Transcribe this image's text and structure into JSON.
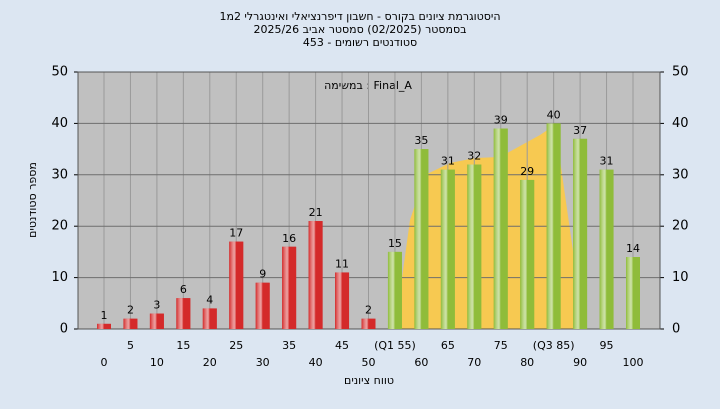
{
  "chart_data": {
    "type": "bar",
    "title": [
      "היסטוגרמת ציונים בקורס - חשבון דיפרנציאלי ואינטגרלי 2מ1",
      "בסמסטר (02/2025) סמסטר אביב 2025/26",
      "סטודנטים רשומים - 453"
    ],
    "annotation": "במשימה : Final_A",
    "x_label": "טווח ציונים",
    "y_label": "מספר סטודנטים",
    "categories": [
      "0",
      "5",
      "10",
      "15",
      "20",
      "25",
      "30",
      "35",
      "40",
      "45",
      "50",
      "(Q1 55)",
      "60",
      "65",
      "70",
      "75",
      "80",
      "(Q3 85)",
      "90",
      "95",
      "100"
    ],
    "values": [
      1,
      2,
      3,
      6,
      4,
      17,
      9,
      16,
      21,
      11,
      2,
      15,
      35,
      31,
      32,
      39,
      29,
      40,
      37,
      31,
      14
    ],
    "colors": [
      "#d42a2a",
      "#d42a2a",
      "#d42a2a",
      "#d42a2a",
      "#d42a2a",
      "#d42a2a",
      "#d42a2a",
      "#d42a2a",
      "#d42a2a",
      "#d42a2a",
      "#d42a2a",
      "#8fbc3a",
      "#8fbc3a",
      "#8fbc3a",
      "#8fbc3a",
      "#8fbc3a",
      "#8fbc3a",
      "#8fbc3a",
      "#8fbc3a",
      "#8fbc3a",
      "#8fbc3a"
    ],
    "ylim": [
      0,
      50
    ],
    "yticks": [
      0,
      10,
      20,
      30,
      40,
      50
    ],
    "y2lim": [
      0,
      50
    ],
    "y2ticks": [
      0,
      10,
      20,
      30,
      40,
      50
    ],
    "grid": true
  }
}
